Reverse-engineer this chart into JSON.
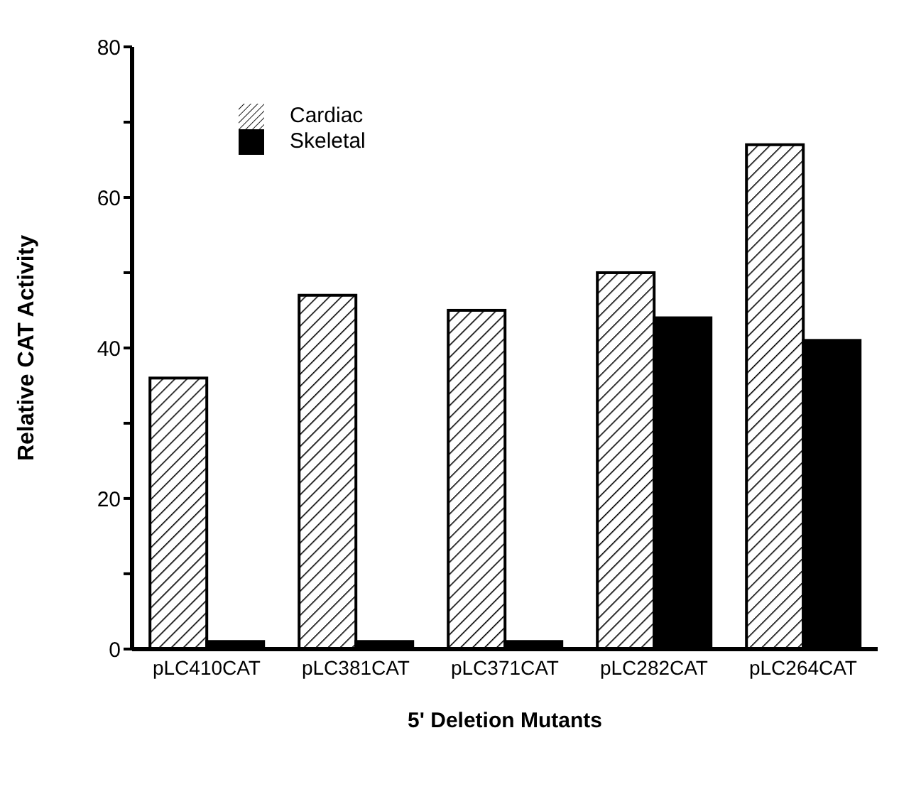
{
  "chart_data": {
    "type": "bar",
    "xlabel": "5' Deletion Mutants",
    "ylabel": "Relative CAT Activity",
    "categories": [
      "pLC410CAT",
      "pLC381CAT",
      "pLC371CAT",
      "pLC282CAT",
      "pLC264CAT"
    ],
    "series": [
      {
        "name": "Cardiac",
        "color": "#ffffff",
        "values": [
          36,
          47,
          45,
          50,
          67
        ]
      },
      {
        "name": "Skeletal",
        "color": "#000000",
        "values": [
          1,
          1,
          1,
          44,
          41
        ]
      }
    ],
    "ylim": [
      0,
      80
    ],
    "yticks": [
      0,
      {
        "value": 10,
        "label": null
      },
      20,
      {
        "value": 30,
        "label": null
      },
      40,
      {
        "value": 50,
        "label": null
      },
      60,
      {
        "value": 70,
        "label": null
      },
      80
    ],
    "legend": "top left"
  }
}
